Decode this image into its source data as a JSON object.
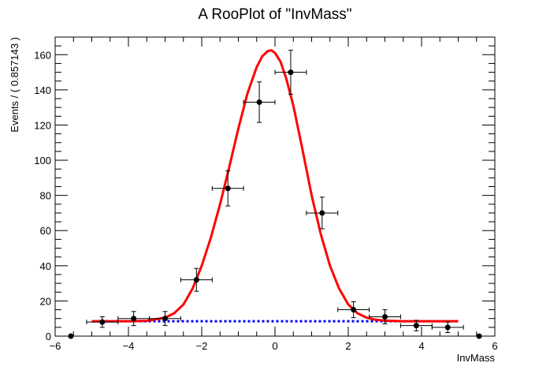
{
  "chart_data": {
    "type": "scatter",
    "title": "A RooPlot of \"InvMass\"",
    "xlabel": "InvMass",
    "ylabel": "Events / ( 0.857143 )",
    "xlim": [
      -6,
      6
    ],
    "ylim": [
      0,
      170
    ],
    "x_ticks": [
      "-6",
      "-4",
      "-2",
      "0",
      "2",
      "4",
      "6"
    ],
    "y_ticks": [
      "0",
      "20",
      "40",
      "60",
      "80",
      "100",
      "120",
      "140",
      "160"
    ],
    "grid": false,
    "legend": "none",
    "bin_half_width": 0.428571,
    "data_points": {
      "x": [
        -5.571,
        -4.714,
        -3.857,
        -3.0,
        -2.143,
        -1.286,
        -0.429,
        0.429,
        1.286,
        2.143,
        3.0,
        3.857,
        4.714,
        5.571
      ],
      "y": [
        0,
        8,
        10,
        10,
        32,
        84,
        133,
        150,
        70,
        15,
        11,
        6,
        5,
        0
      ],
      "yerr": [
        0,
        3,
        4,
        4,
        6.5,
        10,
        11.5,
        12.5,
        9,
        4.5,
        4,
        3,
        3,
        0
      ]
    },
    "series": [
      {
        "style": "solid",
        "color": "#ff0000",
        "x": [
          -5.0,
          -4.5,
          -4.0,
          -3.5,
          -3.0,
          -2.75,
          -2.5,
          -2.25,
          -2.0,
          -1.75,
          -1.5,
          -1.25,
          -1.0,
          -0.75,
          -0.5,
          -0.35,
          -0.2,
          -0.1,
          0.0,
          0.15,
          0.3,
          0.5,
          0.75,
          1.0,
          1.25,
          1.5,
          1.75,
          2.0,
          2.25,
          2.5,
          2.75,
          3.0,
          3.5,
          4.0,
          4.5,
          5.0
        ],
        "y": [
          8.5,
          8.5,
          8.5,
          8.7,
          10.5,
          13,
          18,
          27,
          40,
          56,
          75,
          96,
          118,
          138,
          153,
          159,
          162,
          162.5,
          161,
          156,
          147,
          131,
          106,
          80,
          58,
          40,
          27,
          18,
          13,
          10.5,
          9.3,
          8.8,
          8.5,
          8.5,
          8.5,
          8.5
        ]
      },
      {
        "style": "dotted",
        "color": "#0000ff",
        "x": [
          -5.0,
          5.0
        ],
        "y": [
          8.5,
          8.5
        ]
      }
    ]
  }
}
